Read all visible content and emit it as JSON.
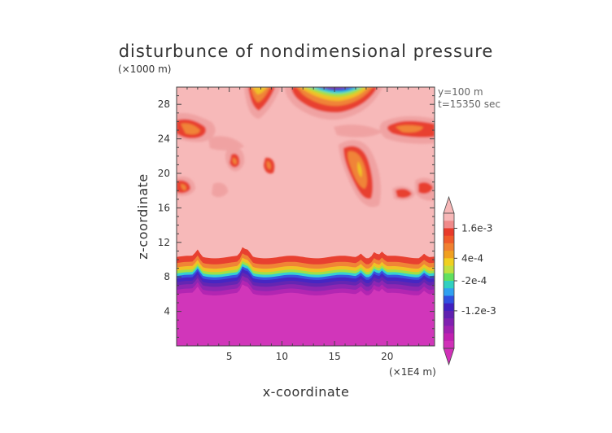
{
  "chart_data": {
    "type": "heatmap",
    "title": "disturbunce of nondimensional pressure",
    "xlabel": "x-coordinate",
    "ylabel": "z-coordinate",
    "x_unit": "(×1E4 m)",
    "y_unit": "(×1000 m)",
    "annotations": [
      "y=100 m",
      "t=15350 sec"
    ],
    "xlim": [
      0,
      24.5
    ],
    "ylim": [
      0,
      30
    ],
    "x_ticks": [
      5,
      10,
      15,
      20
    ],
    "y_ticks": [
      4,
      8,
      12,
      16,
      20,
      24,
      28
    ],
    "colorbar": {
      "levels_top_to_bottom": [
        "#f7b7b7",
        "#f08a8a",
        "#e83a2a",
        "#f05a2a",
        "#f08030",
        "#f0a020",
        "#f0d020",
        "#c0e040",
        "#60e060",
        "#30d0c0",
        "#30a0f0",
        "#3050e0",
        "#4020c0",
        "#6020b0",
        "#8020b0",
        "#a020b0",
        "#c020b0",
        "#d030b8"
      ],
      "labels": [
        "1.6e-3",
        "4e-4",
        "-2e-4",
        "-1.2e-3"
      ],
      "label_level_index": [
        2,
        6,
        9,
        13
      ]
    }
  }
}
